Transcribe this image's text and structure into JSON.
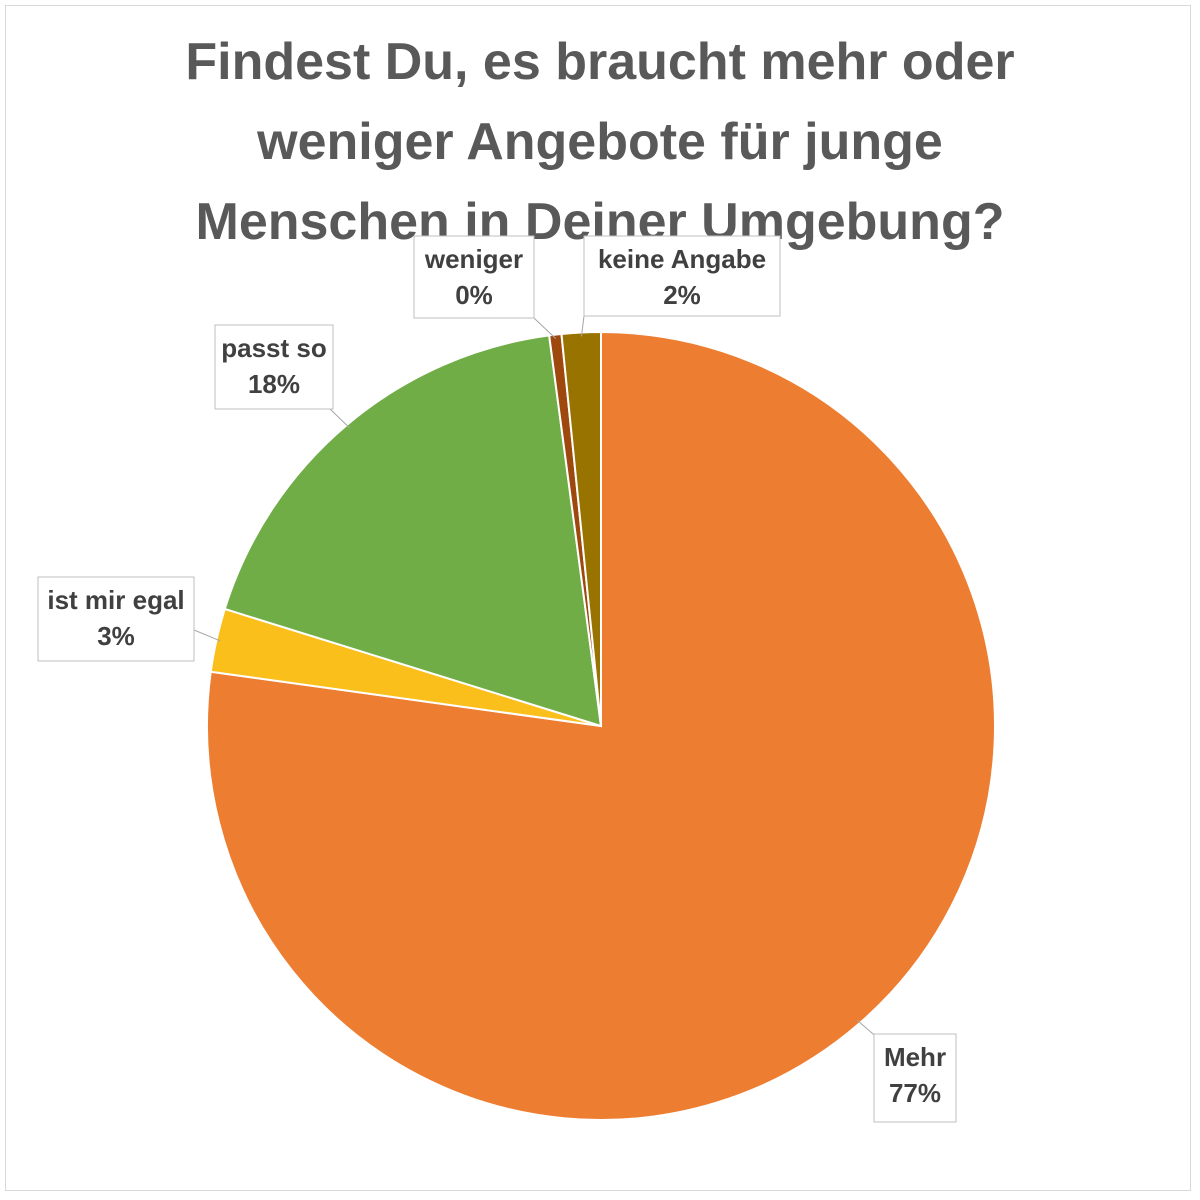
{
  "chart_data": {
    "type": "pie",
    "title_lines": [
      "Findest Du, es braucht mehr oder",
      "weniger Angebote für junge",
      "Menschen in Deiner Umgebung?"
    ],
    "slices": [
      {
        "name": "Mehr",
        "value": 77.2,
        "percent_label": "77%",
        "color": "#ED7D31"
      },
      {
        "name": "ist mir egal",
        "value": 2.6,
        "percent_label": "3%",
        "color": "#FBBF1C"
      },
      {
        "name": "passt so",
        "value": 18.1,
        "percent_label": "18%",
        "color": "#70AD47"
      },
      {
        "name": "weniger",
        "value": 0.5,
        "percent_label": "0%",
        "color": "#9E480E"
      },
      {
        "name": "keine Angabe",
        "value": 1.6,
        "percent_label": "2%",
        "color": "#997300"
      }
    ],
    "start_angle": "12 o'clock",
    "direction": "clockwise",
    "data_labels": "callouts with category name and percentage",
    "legend": "none"
  }
}
